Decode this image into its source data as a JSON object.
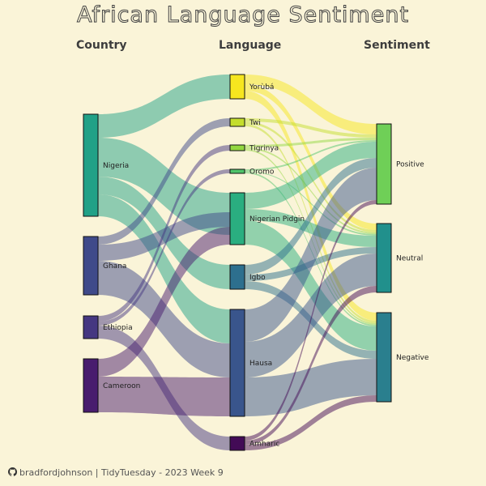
{
  "title": "African Language Sentiment",
  "headers": {
    "country": "Country",
    "language": "Language",
    "sentiment": "Sentiment"
  },
  "footer": "bradfordjohnson | TidyTuesday - 2023 Week 9",
  "countries": [
    {
      "name": "Nigeria",
      "color": "#21a187"
    },
    {
      "name": "Ghana",
      "color": "#3f4a8a"
    },
    {
      "name": "Ethiopia",
      "color": "#453781"
    },
    {
      "name": "Cameroon",
      "color": "#481c6e"
    }
  ],
  "languages": [
    {
      "name": "Yorùbá",
      "color": "#f6e61f"
    },
    {
      "name": "Twi",
      "color": "#c4dd2d"
    },
    {
      "name": "Tigrinya",
      "color": "#93d741"
    },
    {
      "name": "Oromo",
      "color": "#4fc46a"
    },
    {
      "name": "Nigerian Pidgin",
      "color": "#2aae80"
    },
    {
      "name": "Igbo",
      "color": "#2d6f8e"
    },
    {
      "name": "Hausa",
      "color": "#39558c"
    },
    {
      "name": "Amharic",
      "color": "#430b56"
    }
  ],
  "sentiments": [
    {
      "name": "Positive",
      "color": "#6fcf57"
    },
    {
      "name": "Neutral",
      "color": "#21908c"
    },
    {
      "name": "Negative",
      "color": "#2a7f8e"
    }
  ],
  "flows_country_language": [
    {
      "from": "Nigeria",
      "to": "Yorùbá",
      "value": 1
    },
    {
      "from": "Nigeria",
      "to": "Nigerian Pidgin",
      "value": 1
    },
    {
      "from": "Nigeria",
      "to": "Igbo",
      "value": 1
    },
    {
      "from": "Nigeria",
      "to": "Hausa",
      "value": 1
    },
    {
      "from": "Ghana",
      "to": "Twi",
      "value": 1
    },
    {
      "from": "Ethiopia",
      "to": "Tigrinya",
      "value": 1
    },
    {
      "from": "Ethiopia",
      "to": "Oromo",
      "value": 1
    },
    {
      "from": "Ethiopia",
      "to": "Amharic",
      "value": 1
    },
    {
      "from": "Cameroon",
      "to": "Nigerian Pidgin",
      "value": 1
    },
    {
      "from": "Cameroon",
      "to": "Hausa",
      "value": 1
    }
  ],
  "flows_language_sentiment": [
    {
      "from": "Yorùbá",
      "to": "Positive",
      "value": 1
    },
    {
      "from": "Yorùbá",
      "to": "Neutral",
      "value": 1
    },
    {
      "from": "Yorùbá",
      "to": "Negative",
      "value": 1
    },
    {
      "from": "Twi",
      "to": "Positive",
      "value": 1
    },
    {
      "from": "Twi",
      "to": "Neutral",
      "value": 1
    },
    {
      "from": "Twi",
      "to": "Negative",
      "value": 1
    },
    {
      "from": "Tigrinya",
      "to": "Positive",
      "value": 1
    },
    {
      "from": "Tigrinya",
      "to": "Neutral",
      "value": 1
    },
    {
      "from": "Tigrinya",
      "to": "Negative",
      "value": 1
    },
    {
      "from": "Oromo",
      "to": "Positive",
      "value": 1
    },
    {
      "from": "Oromo",
      "to": "Neutral",
      "value": 1
    },
    {
      "from": "Oromo",
      "to": "Negative",
      "value": 1
    },
    {
      "from": "Nigerian Pidgin",
      "to": "Positive",
      "value": 1
    },
    {
      "from": "Nigerian Pidgin",
      "to": "Neutral",
      "value": 1
    },
    {
      "from": "Nigerian Pidgin",
      "to": "Negative",
      "value": 1
    },
    {
      "from": "Igbo",
      "to": "Positive",
      "value": 1
    },
    {
      "from": "Igbo",
      "to": "Neutral",
      "value": 1
    },
    {
      "from": "Igbo",
      "to": "Negative",
      "value": 1
    },
    {
      "from": "Hausa",
      "to": "Positive",
      "value": 1
    },
    {
      "from": "Hausa",
      "to": "Neutral",
      "value": 1
    },
    {
      "from": "Hausa",
      "to": "Negative",
      "value": 1
    },
    {
      "from": "Amharic",
      "to": "Positive",
      "value": 1
    },
    {
      "from": "Amharic",
      "to": "Neutral",
      "value": 1
    },
    {
      "from": "Amharic",
      "to": "Negative",
      "value": 1
    }
  ]
}
